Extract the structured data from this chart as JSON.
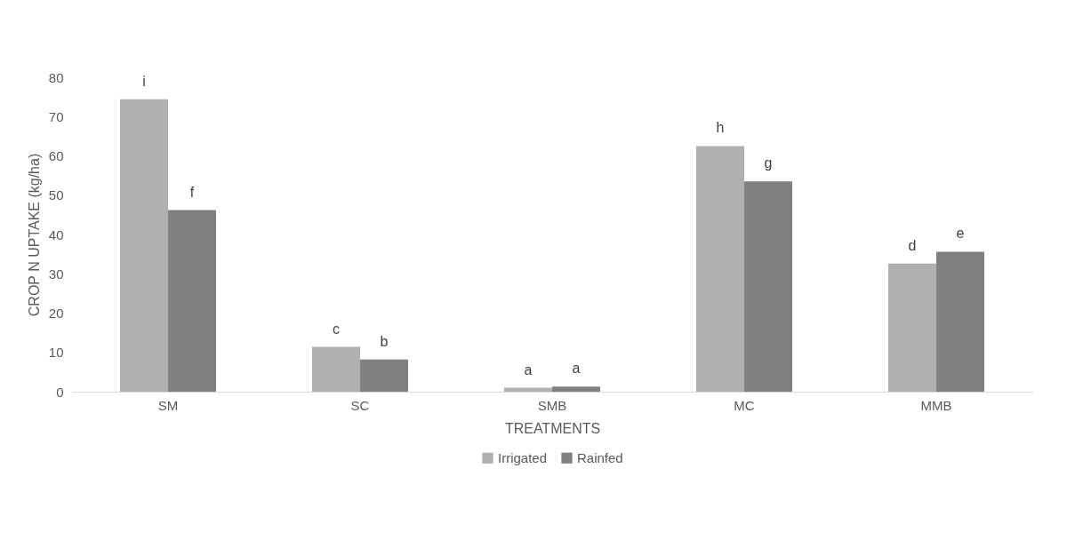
{
  "chart_data": {
    "type": "bar",
    "xlabel": "TREATMENTS",
    "ylabel": "CROP N UPTAKE (kg/ha)",
    "categories": [
      "SM",
      "SC",
      "SMB",
      "MC",
      "MMB"
    ],
    "series": [
      {
        "name": "Irrigated",
        "color": "#b0b0b0",
        "values": [
          74.4,
          11.4,
          1.0,
          62.5,
          32.6
        ]
      },
      {
        "name": "Rainfed",
        "color": "#808080",
        "values": [
          46.2,
          8.2,
          1.3,
          53.5,
          35.6
        ]
      }
    ],
    "ylim": [
      0,
      80
    ],
    "yticks": [
      0,
      10,
      20,
      30,
      40,
      50,
      60,
      70,
      80
    ],
    "grid": false,
    "legend": "bottom",
    "annotations": [
      {
        "text": "i",
        "x": "SM",
        "y": 74.4
      },
      {
        "text": "f",
        "x": "SM",
        "y": 46.2
      },
      {
        "text": "c",
        "x": "SC",
        "y": 11.4
      },
      {
        "text": "b",
        "x": "SC",
        "y": 8.2
      },
      {
        "text": "a",
        "x": "SMB",
        "y": 1.0
      },
      {
        "text": "a",
        "x": "SMB",
        "y": 1.3
      },
      {
        "text": "h",
        "x": "MC",
        "y": 62.5
      },
      {
        "text": "g",
        "x": "MC",
        "y": 53.5
      },
      {
        "text": "d",
        "x": "MMB",
        "y": 32.6
      },
      {
        "text": "e",
        "x": "MMB",
        "y": 35.6
      }
    ]
  }
}
